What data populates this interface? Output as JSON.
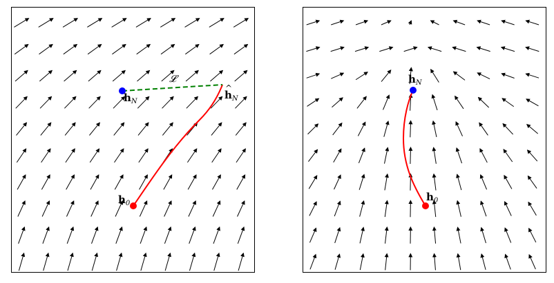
{
  "panels": {
    "left": {
      "h_N": {
        "base": "h",
        "sub": "N",
        "color": "#0000ff"
      },
      "h_hat_N": {
        "base": "h",
        "sub": "N"
      },
      "h_0": {
        "base": "h",
        "sub": "0",
        "color": "#ff0000"
      },
      "loss_label": "𝓛",
      "trajectory_color": "#ff0000",
      "loss_line_color": "#008000"
    },
    "right": {
      "h_N": {
        "base": "h",
        "sub": "N",
        "color": "#0000ff"
      },
      "h_0": {
        "base": "h",
        "sub": "0",
        "color": "#ff0000"
      },
      "trajectory_color": "#ff0000"
    }
  },
  "icons": [
    "vector-field-arrows"
  ]
}
